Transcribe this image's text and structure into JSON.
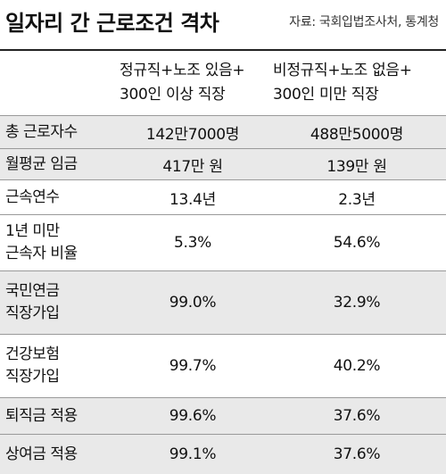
{
  "title": "일자리 간 근로조건 격차",
  "source": "자료: 국회입법조사처, 통계청",
  "columns": [
    "정규직+노조 있음+\n300인 이상 직장",
    "비정규직+노조 없음+\n300인 미만 직장"
  ],
  "rows": [
    {
      "label": "총 근로자수",
      "v1": "142만7000명",
      "v2": "488만5000명"
    },
    {
      "label": "월평균 임금",
      "v1": "417만 원",
      "v2": "139만 원"
    },
    {
      "label": "근속연수",
      "v1": "13.4년",
      "v2": "2.3년"
    },
    {
      "label": "1년 미만\n근속자 비율",
      "v1": "5.3%",
      "v2": "54.6%"
    },
    {
      "label": "국민연금\n직장가입",
      "v1": "99.0%",
      "v2": "32.9%"
    },
    {
      "label": "건강보험\n직장가입",
      "v1": "99.7%",
      "v2": "40.2%"
    },
    {
      "label": "퇴직금 적용",
      "v1": "99.6%",
      "v2": "37.6%"
    },
    {
      "label": "상여금 적용",
      "v1": "99.1%",
      "v2": "37.6%"
    }
  ]
}
